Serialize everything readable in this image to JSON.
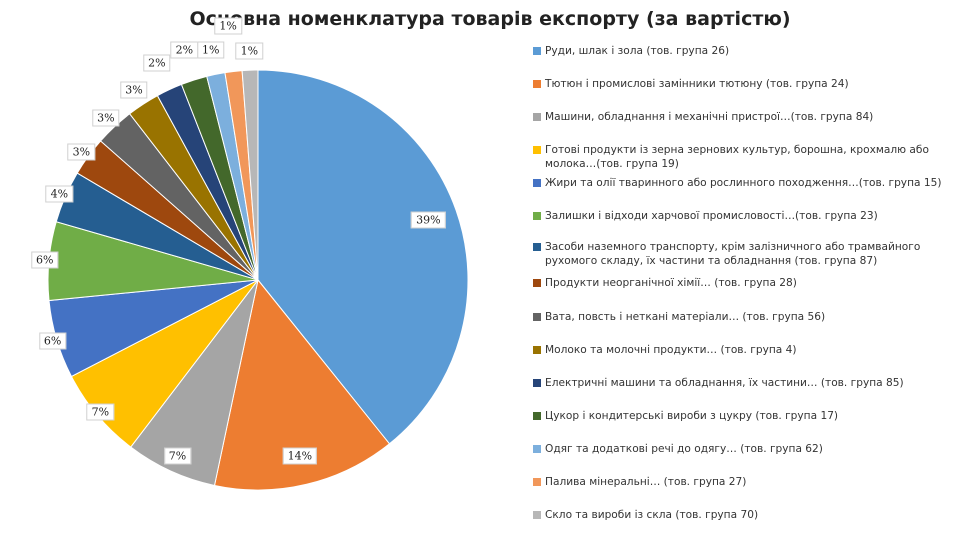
{
  "chart_data": {
    "type": "pie",
    "title": "Основна номенклатура товарів експорту (за вартістю)",
    "legend_position": "right",
    "slices": [
      {
        "name": "Руди, шлак і зола (тов. група 26)",
        "value": 39,
        "label": "39%",
        "color": "#5b9bd5"
      },
      {
        "name": "Тютюн і промислові замінники тютюну (тов. група 24)",
        "value": 14,
        "label": "14%",
        "color": "#ed7d31"
      },
      {
        "name": "Машини, обладнання і механічні пристрої…(тов. група 84)",
        "value": 7,
        "label": "7%",
        "color": "#a5a5a5"
      },
      {
        "name": "Готові продукти із зерна зернових культур, борошна, крохмалю або молока…(тов. група 19)",
        "value": 7,
        "label": "7%",
        "color": "#ffc000"
      },
      {
        "name": "Жири та олії тваринного або рослинного походження…(тов. група 15)",
        "value": 6,
        "label": "6%",
        "color": "#4472c4"
      },
      {
        "name": "Залишки і відходи харчової промисловості…(тов. група 23)",
        "value": 6,
        "label": "6%",
        "color": "#70ad47"
      },
      {
        "name": "Засоби наземного транспорту, крім залізничного або трамвайного рухомого складу, їх частини та обладнання (тов. група 87)",
        "value": 4,
        "label": "4%",
        "color": "#255e91"
      },
      {
        "name": "Продукти неорганічної хімії… (тов. група 28)",
        "value": 3,
        "label": "3%",
        "color": "#9e480e"
      },
      {
        "name": "Вата, повсть і нетканi матеріали… (тов. група 56)",
        "value": 3,
        "label": "3%",
        "color": "#636363"
      },
      {
        "name": "Молоко та молочні продукти… (тов. група 4)",
        "value": 2.5,
        "label": "3%",
        "color": "#997300"
      },
      {
        "name": "Електричні машини та обладнання, їх частини… (тов. група 85)",
        "value": 2,
        "label": "2%",
        "color": "#264478"
      },
      {
        "name": "Цукор і кондитерські вироби з цукру (тов. група 17)",
        "value": 2,
        "label": "2%",
        "color": "#43682b"
      },
      {
        "name": "Одяг та додаткові речі до одягу… (тов. група 62)",
        "value": 1.4,
        "label": "1%",
        "color": "#7cafdd"
      },
      {
        "name": "Палива мінеральні… (тов. група 27)",
        "value": 1.3,
        "label": "1%",
        "color": "#f1975a"
      },
      {
        "name": "Скло та вироби із скла (тов. група 70)",
        "value": 1.2,
        "label": "1%",
        "color": "#b7b7b7"
      }
    ]
  }
}
